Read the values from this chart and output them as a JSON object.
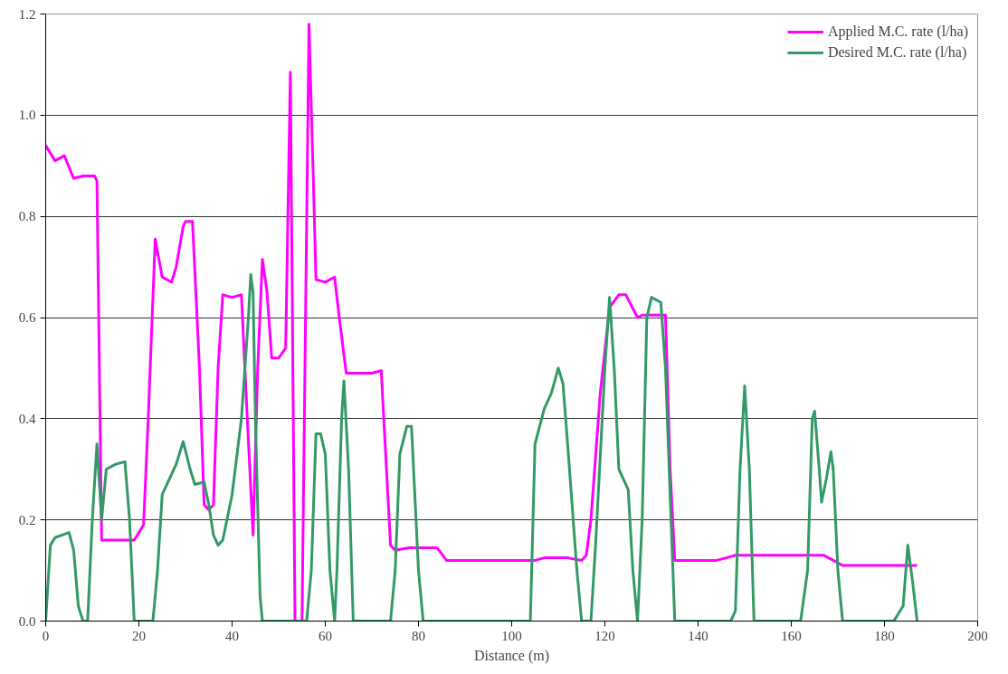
{
  "chart_data": {
    "type": "line",
    "xlabel": "Distance (m)",
    "xlim": [
      0,
      200
    ],
    "ylim": [
      0,
      1.2
    ],
    "xticks": [
      0,
      20,
      40,
      60,
      80,
      100,
      120,
      140,
      160,
      180,
      200
    ],
    "yticks": [
      {
        "value": 0,
        "label": "0.0"
      },
      {
        "value": 0.2,
        "label": "0.2"
      },
      {
        "value": 0.4,
        "label": "0.4"
      },
      {
        "value": 0.6,
        "label": "0.6"
      },
      {
        "value": 0.8,
        "label": "0.8"
      },
      {
        "value": 1.0,
        "label": "1.0"
      },
      {
        "value": 1.2,
        "label": "1.2"
      }
    ],
    "grid": "y",
    "legend": "top right",
    "marker": "none",
    "line_style": "solid",
    "series": [
      {
        "name": "Applied M.C. rate (l/ha)",
        "color": "#ff00ff",
        "x": [
          0,
          2,
          4,
          6,
          8,
          10.5,
          11,
          12,
          14,
          19,
          21,
          22,
          23.5,
          25,
          27,
          28,
          29.5,
          30,
          31.5,
          33,
          34,
          35,
          36,
          37,
          38,
          40,
          42,
          43,
          44.5,
          45.5,
          46.5,
          47.5,
          48.5,
          50,
          51.5,
          52.5,
          53.5,
          55,
          56.5,
          57.5,
          58,
          60,
          62,
          63,
          64.5,
          66,
          70,
          72,
          74,
          75,
          78,
          84,
          86,
          88,
          100,
          105,
          107,
          112,
          115,
          116,
          117,
          119,
          121,
          123,
          124.5,
          127,
          128,
          131,
          133,
          134,
          135,
          136,
          144,
          146,
          148,
          165,
          167,
          169,
          171,
          187
        ],
        "values": [
          0.94,
          0.91,
          0.92,
          0.875,
          0.88,
          0.88,
          0.87,
          0.16,
          0.16,
          0.16,
          0.19,
          0.4,
          0.755,
          0.68,
          0.67,
          0.7,
          0.78,
          0.79,
          0.79,
          0.5,
          0.23,
          0.22,
          0.23,
          0.5,
          0.645,
          0.64,
          0.645,
          0.45,
          0.17,
          0.5,
          0.715,
          0.65,
          0.52,
          0.52,
          0.54,
          1.085,
          0.0,
          0.0,
          1.18,
          0.85,
          0.675,
          0.67,
          0.68,
          0.6,
          0.49,
          0.49,
          0.49,
          0.495,
          0.15,
          0.14,
          0.145,
          0.145,
          0.12,
          0.12,
          0.12,
          0.12,
          0.125,
          0.125,
          0.12,
          0.13,
          0.2,
          0.45,
          0.62,
          0.645,
          0.645,
          0.6,
          0.605,
          0.605,
          0.605,
          0.3,
          0.12,
          0.12,
          0.12,
          0.125,
          0.13,
          0.13,
          0.13,
          0.12,
          0.11,
          0.11
        ]
      },
      {
        "name": "Desired M.C. rate (l/ha)",
        "color": "#339966",
        "x": [
          0,
          1,
          2,
          5,
          6,
          7,
          8,
          9,
          10,
          11,
          12,
          13,
          15,
          17,
          18,
          19,
          23,
          24,
          25,
          27,
          28,
          29.5,
          31,
          32,
          34,
          35,
          36,
          37,
          38,
          40,
          42,
          43.5,
          44,
          44.5,
          45,
          46,
          46.5,
          53,
          56,
          57,
          58,
          59,
          60,
          61,
          62,
          62.5,
          63.5,
          64,
          65,
          66,
          74,
          75,
          76,
          77.5,
          78.5,
          80,
          81,
          104,
          105,
          107,
          108.5,
          110,
          111,
          112,
          114,
          115,
          117,
          118,
          120,
          121,
          122,
          123,
          125,
          126,
          127,
          128,
          129,
          130,
          132,
          133,
          134,
          135,
          147,
          148,
          149,
          150,
          151,
          152,
          162,
          163.5,
          164.5,
          165,
          166,
          166.5,
          167.5,
          168.5,
          169,
          170,
          171,
          182,
          184,
          185,
          186,
          187
        ],
        "values": [
          0,
          0.15,
          0.165,
          0.175,
          0.14,
          0.03,
          0,
          0,
          0.2,
          0.35,
          0.2,
          0.3,
          0.31,
          0.315,
          0.2,
          0,
          0,
          0.1,
          0.25,
          0.29,
          0.31,
          0.355,
          0.3,
          0.27,
          0.275,
          0.23,
          0.17,
          0.15,
          0.16,
          0.25,
          0.4,
          0.6,
          0.685,
          0.65,
          0.4,
          0.05,
          0,
          0,
          0,
          0.1,
          0.37,
          0.37,
          0.33,
          0.1,
          0,
          0.1,
          0.4,
          0.475,
          0.3,
          0,
          0,
          0.1,
          0.33,
          0.385,
          0.385,
          0.1,
          0,
          0,
          0.35,
          0.42,
          0.45,
          0.5,
          0.47,
          0.35,
          0.1,
          0,
          0,
          0.15,
          0.5,
          0.64,
          0.5,
          0.3,
          0.26,
          0.1,
          0,
          0.2,
          0.6,
          0.64,
          0.63,
          0.5,
          0.25,
          0,
          0,
          0.02,
          0.3,
          0.465,
          0.3,
          0,
          0,
          0.1,
          0.4,
          0.415,
          0.3,
          0.235,
          0.28,
          0.335,
          0.3,
          0.1,
          0,
          0,
          0.03,
          0.15,
          0.08,
          0
        ]
      }
    ]
  }
}
